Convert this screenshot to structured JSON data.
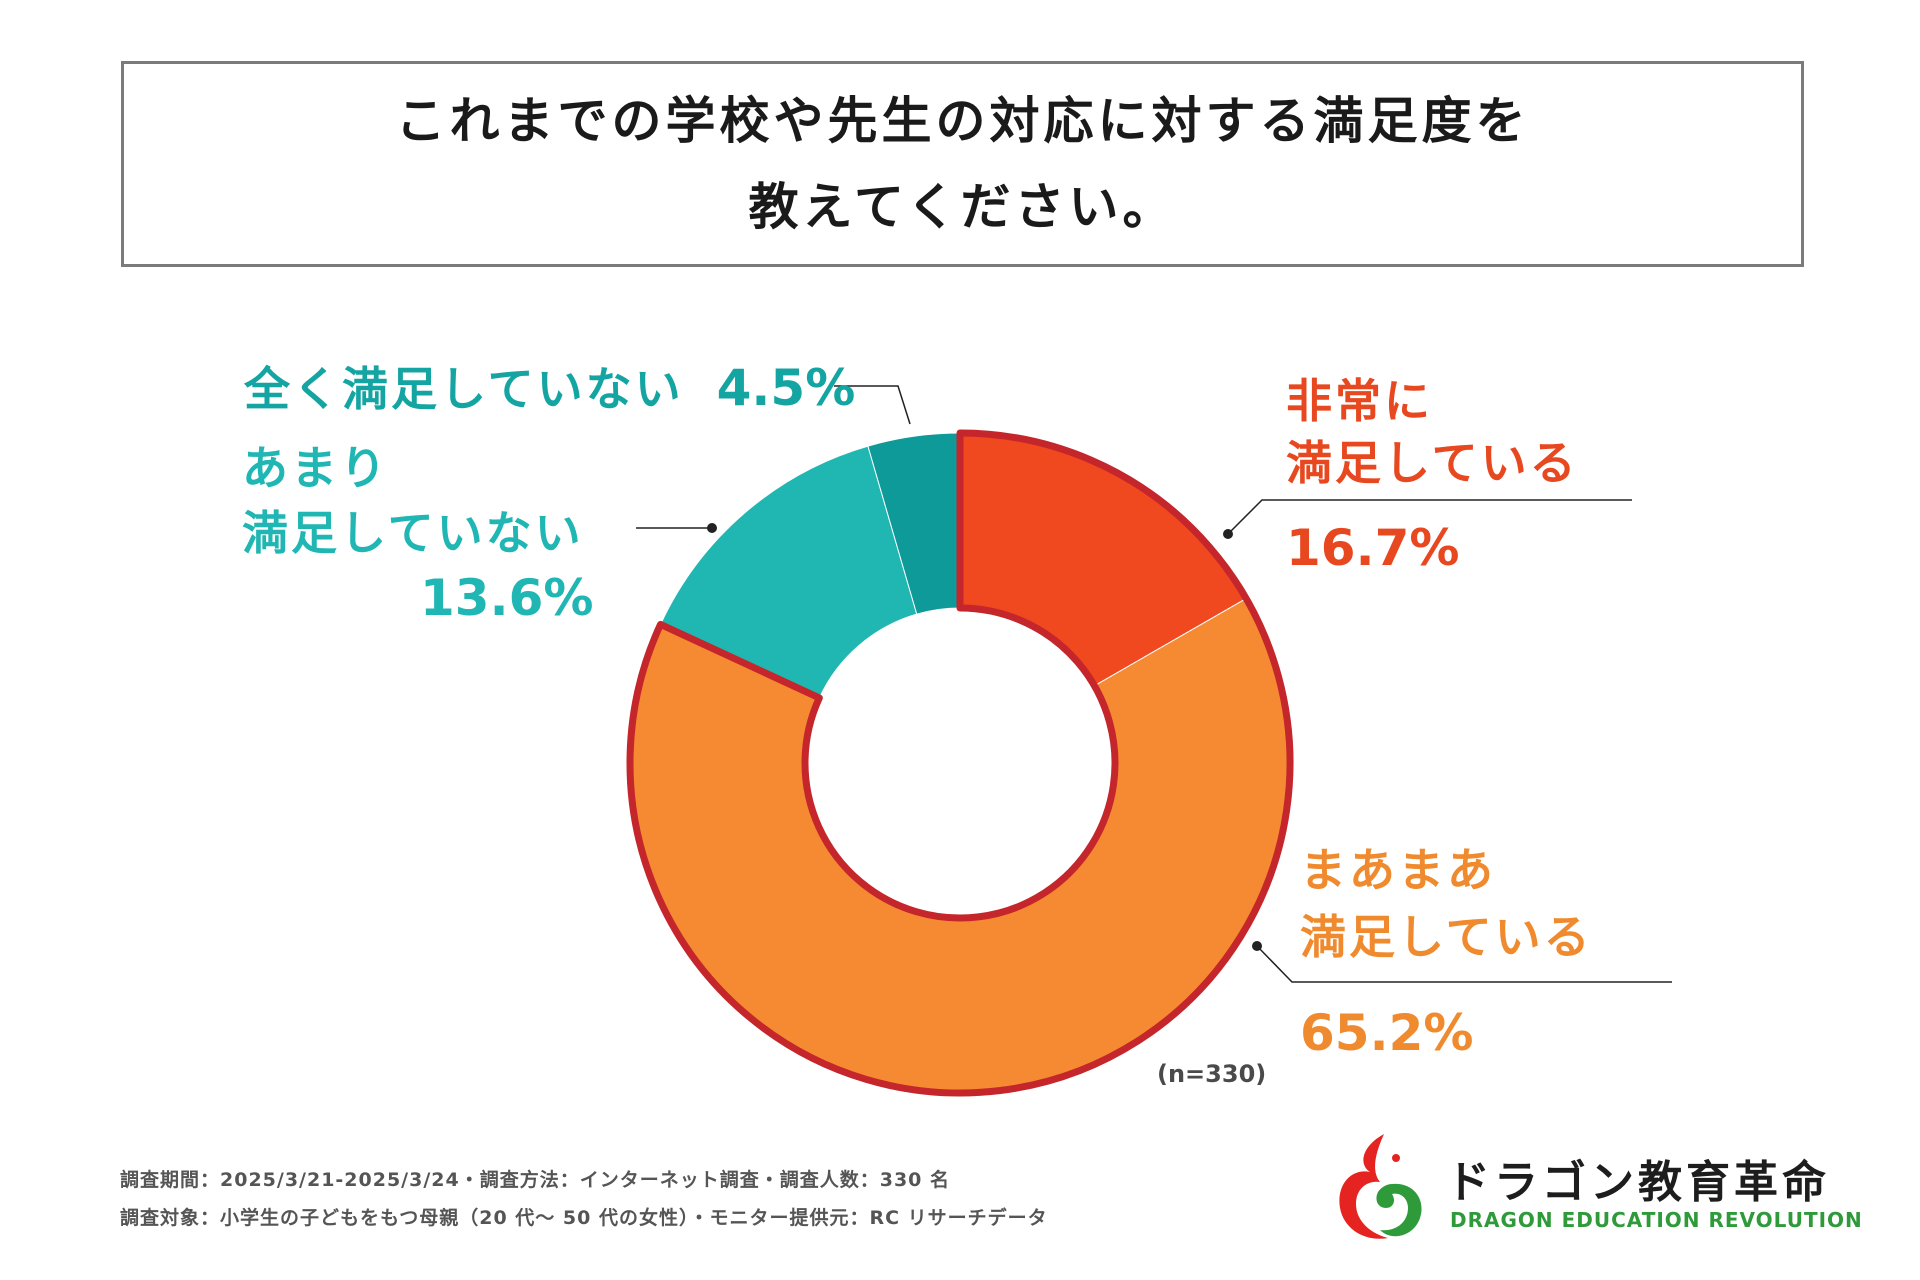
{
  "title": {
    "line1": "これまでの学校や先生の対応に対する満足度を",
    "line2": "教えてください。"
  },
  "chart_data": {
    "type": "pie",
    "variant": "donut",
    "title": "これまでの学校や先生の対応に対する満足度を教えてください。",
    "sample": "(n=330)",
    "slices": [
      {
        "name": "非常に満足している",
        "line1": "非常に",
        "line2": "満足している",
        "value": 16.7,
        "label": "16.7%",
        "color": "#f0481f"
      },
      {
        "name": "まあまあ満足している",
        "line1": "まあまあ",
        "line2": "満足している",
        "value": 65.2,
        "label": "65.2%",
        "color": "#f58a33"
      },
      {
        "name": "あまり満足していない",
        "line1": "あまり",
        "line2": "満足していない",
        "value": 13.6,
        "label": "13.6%",
        "color": "#20b7b3"
      },
      {
        "name": "全く満足していない",
        "line1": "全く満足していない",
        "value": 4.5,
        "label": "4.5%",
        "color": "#0d9a98"
      }
    ],
    "highlight_stroke": "#c4262b"
  },
  "footer": {
    "line1": "調査期間：2025/3/21-2025/3/24・調査方法：インターネット調査・調査人数：330 名",
    "line2": "調査対象：小学生の子どもをもつ母親（20 代～ 50 代の女性）・モニター提供元：RC リサーチデータ"
  },
  "brand": {
    "name_ja": "ドラゴン教育革命",
    "name_en": "DRAGON EDUCATION REVOLUTION",
    "accent_red": "#e52421",
    "accent_green": "#2e9a3a"
  }
}
